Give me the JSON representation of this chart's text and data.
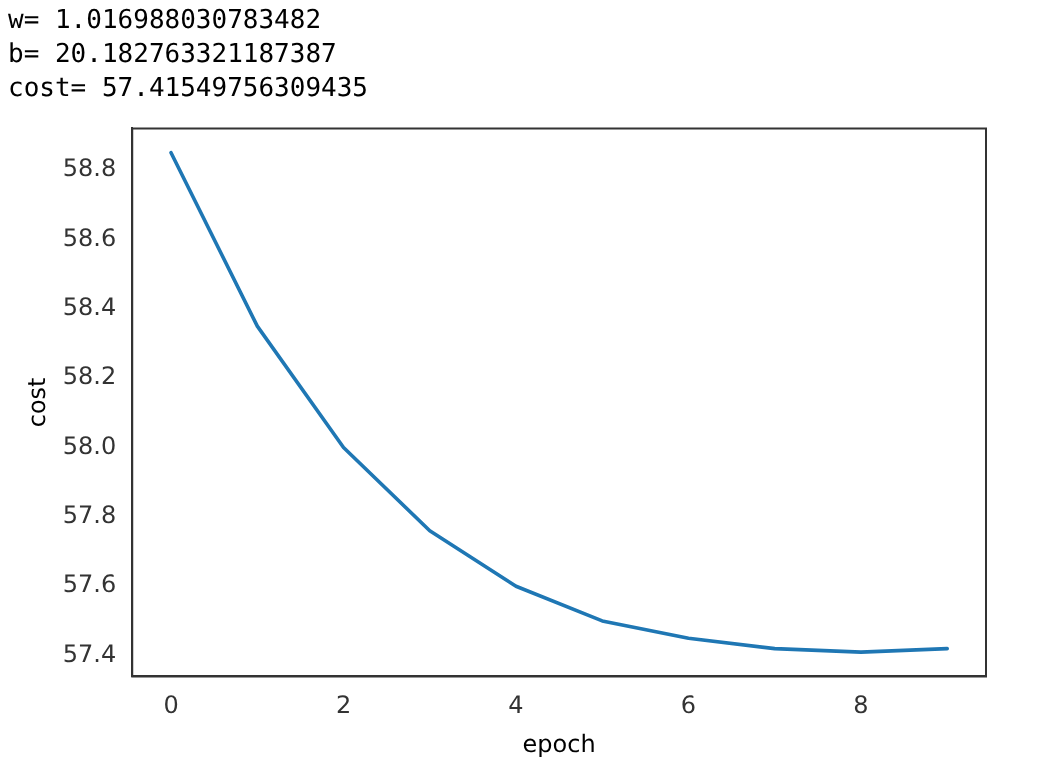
{
  "chart_data": {
    "type": "line",
    "xlabel": "epoch",
    "ylabel": "cost",
    "annotations": [
      "w= 1.016988030783482",
      "b= 20.182763321187387",
      "cost= 57.41549756309435"
    ],
    "x": [
      0,
      1,
      2,
      3,
      4,
      5,
      6,
      7,
      8,
      9
    ],
    "series": [
      {
        "color": "#1f77b4",
        "values": [
          58.85,
          58.35,
          58.0,
          57.76,
          57.6,
          57.5,
          57.45,
          57.42,
          57.41,
          57.42
        ]
      }
    ],
    "xlim": [
      -0.45,
      9.45
    ],
    "xticks": [
      0,
      2,
      4,
      6,
      8
    ],
    "ylim": [
      57.34,
      58.92
    ],
    "yticks": [
      {
        "value": 57.4,
        "label": "57.4"
      },
      {
        "value": 57.6,
        "label": "57.6"
      },
      {
        "value": 57.8,
        "label": "57.8"
      },
      {
        "value": 58.0,
        "label": "58.0"
      },
      {
        "value": 58.2,
        "label": "58.2"
      },
      {
        "value": 58.4,
        "label": "58.4"
      },
      {
        "value": 58.6,
        "label": "58.6"
      },
      {
        "value": 58.8,
        "label": "58.8"
      }
    ],
    "grid": false,
    "legend": false,
    "marker": "none",
    "line_style": "solid"
  }
}
